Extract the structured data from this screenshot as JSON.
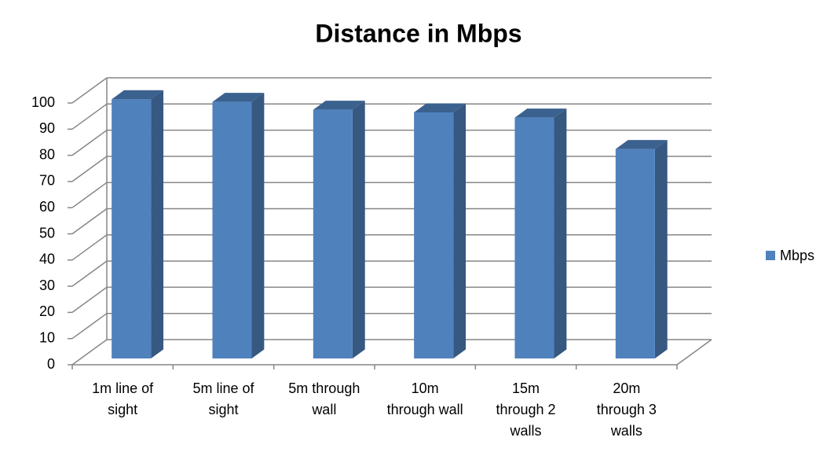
{
  "chart_data": {
    "type": "bar3d",
    "title": "Distance in Mbps",
    "categories": [
      [
        "1m line of",
        "sight"
      ],
      [
        "5m line of",
        "sight"
      ],
      [
        "5m through",
        "wall"
      ],
      [
        "10m",
        "through wall"
      ],
      [
        "15m",
        "through 2",
        "walls"
      ],
      [
        "20m",
        "through 3",
        "walls"
      ]
    ],
    "series": [
      {
        "name": "Mbps",
        "color": "#4f81bd",
        "values": [
          99,
          98,
          95,
          94,
          92,
          80
        ]
      }
    ],
    "ylim": [
      0,
      100
    ],
    "yticks": [
      0,
      10,
      20,
      30,
      40,
      50,
      60,
      70,
      80,
      90,
      100
    ],
    "grid": true,
    "legend": "right"
  }
}
